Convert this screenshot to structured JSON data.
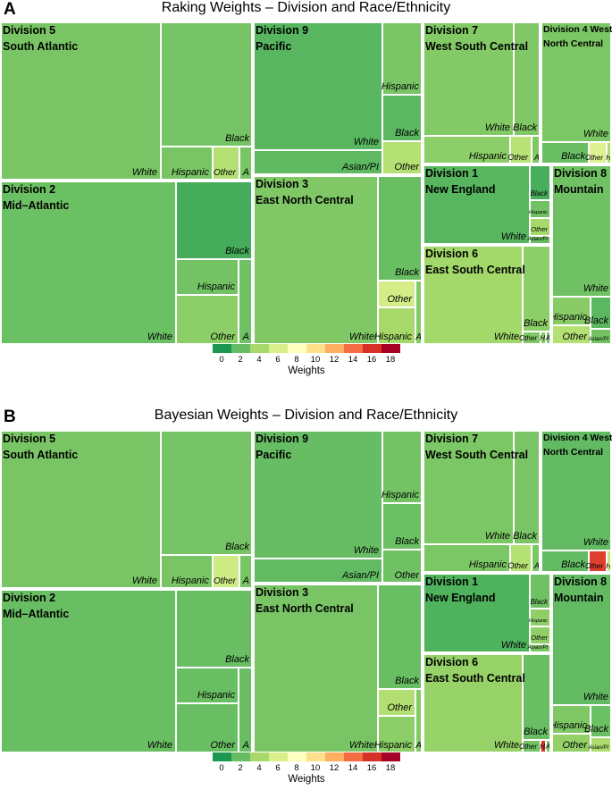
{
  "panels": [
    {
      "letter": "A",
      "title": "Raking Weights – Division and Race/Ethnicity",
      "chart_data": {
        "type": "treemap",
        "title": "Raking Weights – Division and Race/Ethnicity",
        "divisions": [
          {
            "name": "Division 5",
            "region": "South Atlantic",
            "groups": [
              {
                "label": "White",
                "weight": 2.6
              },
              {
                "label": "Black",
                "weight": 2.5
              },
              {
                "label": "Hispanic",
                "weight": 2.6
              },
              {
                "label": "Other",
                "weight": 4.6
              },
              {
                "label": "A",
                "weight": 2.6
              }
            ]
          },
          {
            "name": "Division 2",
            "region": "Mid–Atlantic",
            "groups": [
              {
                "label": "White",
                "weight": 2.2
              },
              {
                "label": "Black",
                "weight": 1.1
              },
              {
                "label": "Hispanic",
                "weight": 2.4
              },
              {
                "label": "Other",
                "weight": 3.2
              },
              {
                "label": "A",
                "weight": 2.3
              }
            ]
          },
          {
            "name": "Division 9",
            "region": "Pacific",
            "groups": [
              {
                "label": "White",
                "weight": 1.6
              },
              {
                "label": "Hispanic",
                "weight": 2.6
              },
              {
                "label": "Black",
                "weight": 1.7
              },
              {
                "label": "Other",
                "weight": 4.6
              },
              {
                "label": "Asian/PI",
                "weight": 1.8
              }
            ]
          },
          {
            "name": "Division 3",
            "region": "East North Central",
            "groups": [
              {
                "label": "White",
                "weight": 2.8
              },
              {
                "label": "Black",
                "weight": 2.1
              },
              {
                "label": "Other",
                "weight": 5.8
              },
              {
                "label": "Hispanic",
                "weight": 4.0
              },
              {
                "label": "A",
                "weight": 2.9
              }
            ]
          },
          {
            "name": "Division 7",
            "region": "West South Central",
            "groups": [
              {
                "label": "White",
                "weight": 2.9
              },
              {
                "label": "Black",
                "weight": 2.8
              },
              {
                "label": "Hispanic",
                "weight": 3.2
              },
              {
                "label": "Other",
                "weight": 4.7
              },
              {
                "label": "A",
                "weight": 2.8
              }
            ]
          },
          {
            "name": "Division 4 West",
            "region": "North Central",
            "groups": [
              {
                "label": "White",
                "weight": 2.7
              },
              {
                "label": "Black",
                "weight": 2.1
              },
              {
                "label": "Other",
                "weight": 6.2
              },
              {
                "label": "H",
                "weight": 4.2
              }
            ]
          },
          {
            "name": "Division 1",
            "region": "New England",
            "groups": [
              {
                "label": "White",
                "weight": 1.6
              },
              {
                "label": "Black",
                "weight": 1.2
              },
              {
                "label": "Hispanic",
                "weight": 2.3
              },
              {
                "label": "Other",
                "weight": 4.0
              },
              {
                "label": "Asian/PI",
                "weight": 2.0
              }
            ]
          },
          {
            "name": "Division 8",
            "region": "Mountain",
            "groups": [
              {
                "label": "White",
                "weight": 2.3
              },
              {
                "label": "Hispanic",
                "weight": 3.1
              },
              {
                "label": "Black",
                "weight": 1.7
              },
              {
                "label": "Other",
                "weight": 4.6
              },
              {
                "label": "Asian/PI",
                "weight": 2.4
              }
            ]
          },
          {
            "name": "Division 6",
            "region": "East South Central",
            "groups": [
              {
                "label": "White",
                "weight": 3.9
              },
              {
                "label": "Black",
                "weight": 3.2
              },
              {
                "label": "Other",
                "weight": 2.8
              },
              {
                "label": "H",
                "weight": 3.0
              },
              {
                "label": "A",
                "weight": 2.8
              }
            ]
          }
        ],
        "color_scale": {
          "min": 0,
          "max": 18,
          "ticks": [
            0,
            2,
            4,
            6,
            8,
            10,
            12,
            14,
            16,
            18
          ],
          "title": "Weights"
        }
      }
    },
    {
      "letter": "B",
      "title": "Bayesian Weights – Division and Race/Ethnicity",
      "chart_data": {
        "type": "treemap",
        "title": "Bayesian Weights – Division and Race/Ethnicity",
        "divisions": [
          {
            "name": "Division 5",
            "region": "South Atlantic",
            "groups": [
              {
                "label": "White",
                "weight": 2.6
              },
              {
                "label": "Black",
                "weight": 2.5
              },
              {
                "label": "Hispanic",
                "weight": 2.6
              },
              {
                "label": "Other",
                "weight": 5.6
              },
              {
                "label": "A",
                "weight": 2.6
              }
            ]
          },
          {
            "name": "Division 2",
            "region": "Mid–Atlantic",
            "groups": [
              {
                "label": "White",
                "weight": 2.1
              },
              {
                "label": "Black",
                "weight": 2.1
              },
              {
                "label": "Hispanic",
                "weight": 2.1
              },
              {
                "label": "Other",
                "weight": 2.1
              },
              {
                "label": "A",
                "weight": 2.1
              }
            ]
          },
          {
            "name": "Division 9",
            "region": "Pacific",
            "groups": [
              {
                "label": "White",
                "weight": 2.0
              },
              {
                "label": "Hispanic",
                "weight": 2.4
              },
              {
                "label": "Black",
                "weight": 2.2
              },
              {
                "label": "Other",
                "weight": 2.3
              },
              {
                "label": "Asian/PI",
                "weight": 1.9
              }
            ]
          },
          {
            "name": "Division 3",
            "region": "East North Central",
            "groups": [
              {
                "label": "White",
                "weight": 2.6
              },
              {
                "label": "Black",
                "weight": 2.1
              },
              {
                "label": "Other",
                "weight": 4.5
              },
              {
                "label": "Hispanic",
                "weight": 3.2
              },
              {
                "label": "A",
                "weight": 2.9
              }
            ]
          },
          {
            "name": "Division 7",
            "region": "West South Central",
            "groups": [
              {
                "label": "White",
                "weight": 2.7
              },
              {
                "label": "Black",
                "weight": 2.6
              },
              {
                "label": "Hispanic",
                "weight": 2.7
              },
              {
                "label": "Other",
                "weight": 4.6
              },
              {
                "label": "A",
                "weight": 2.7
              }
            ]
          },
          {
            "name": "Division 4 West",
            "region": "North Central",
            "groups": [
              {
                "label": "White",
                "weight": 1.9
              },
              {
                "label": "Black",
                "weight": 1.9
              },
              {
                "label": "Other",
                "weight": 15.5
              },
              {
                "label": "H",
                "weight": 5.2
              }
            ]
          },
          {
            "name": "Division 1",
            "region": "New England",
            "groups": [
              {
                "label": "White",
                "weight": 1.4
              },
              {
                "label": "Black",
                "weight": 2.3
              },
              {
                "label": "Hispanic",
                "weight": 3.3
              },
              {
                "label": "Other",
                "weight": 3.3
              },
              {
                "label": "Asian/PI",
                "weight": 2.7
              }
            ]
          },
          {
            "name": "Division 8",
            "region": "Mountain",
            "groups": [
              {
                "label": "White",
                "weight": 1.9
              },
              {
                "label": "Hispanic",
                "weight": 2.8
              },
              {
                "label": "Black",
                "weight": 2.2
              },
              {
                "label": "Other",
                "weight": 3.4
              },
              {
                "label": "Asian/PI",
                "weight": 4.3
              }
            ]
          },
          {
            "name": "Division 6",
            "region": "East South Central",
            "groups": [
              {
                "label": "White",
                "weight": 3.5
              },
              {
                "label": "Black",
                "weight": 2.1
              },
              {
                "label": "Other",
                "weight": 2.4
              },
              {
                "label": "H",
                "weight": 16.0
              },
              {
                "label": "A",
                "weight": 2.6
              }
            ]
          }
        ],
        "color_scale": {
          "min": 0,
          "max": 18,
          "ticks": [
            0,
            2,
            4,
            6,
            8,
            10,
            12,
            14,
            16,
            18
          ],
          "title": "Weights"
        }
      }
    }
  ],
  "legend": {
    "title": "Weights",
    "ticks": [
      "0",
      "2",
      "4",
      "6",
      "8",
      "10",
      "12",
      "14",
      "16",
      "18"
    ],
    "colors": [
      "#1a9850",
      "#66bd63",
      "#a6d96a",
      "#d9ef8b",
      "#ffffbf",
      "#fee08b",
      "#fdae61",
      "#f46d43",
      "#d73027",
      "#a50026"
    ]
  },
  "colors": {
    "label": "#000000",
    "background": "#ffffff",
    "border": "#ffffff"
  }
}
